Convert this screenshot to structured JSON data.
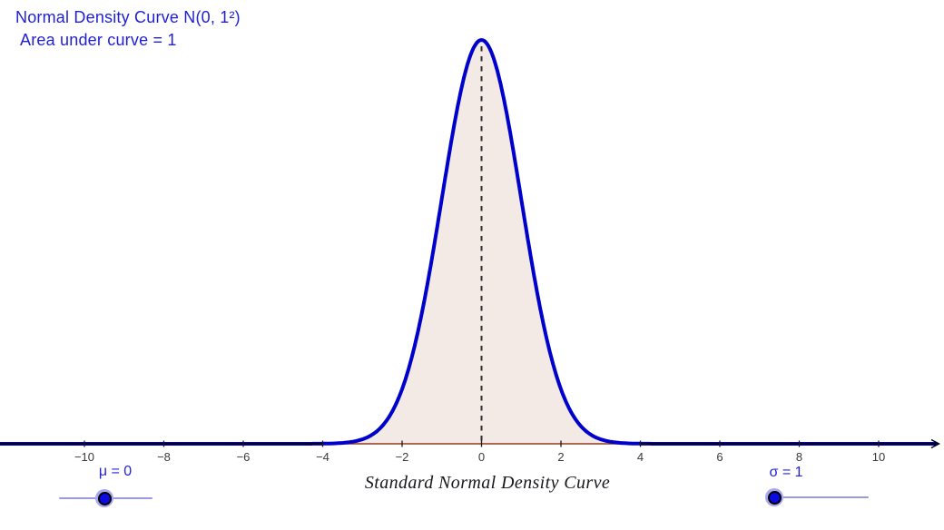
{
  "app": {
    "background": "#ffffff"
  },
  "chart_data": {
    "type": "area",
    "title": "Normal Density Curve N(0, 1²)",
    "subtitle": "Area under curve = 1",
    "caption": "Standard Normal Density Curve",
    "distribution": {
      "name": "normal",
      "mu": 0,
      "sigma": 1,
      "peak_density": 0.3989
    },
    "x_ticks": [
      -10,
      -8,
      -6,
      -4,
      -2,
      0,
      2,
      4,
      6,
      8,
      10
    ],
    "x_axis_range_units": [
      -12.2,
      11.45
    ],
    "shaded_region": {
      "from": -4,
      "to": 4,
      "area": 1
    },
    "dashed_line_x": 0,
    "grid": false,
    "colors": {
      "curve": "#0000cc",
      "fill": "#f3eae5",
      "region_baseline": "#93391f",
      "axis": "#000000",
      "tick_label": "#3a3a3a",
      "dashed_line": "#2e2e2e",
      "title_text": "#1f1fd9",
      "caption_text": "#17171c",
      "slider_accent": "#2222dd",
      "slider_track": "#9a9ae2",
      "slider_knob": "#0c0ce0",
      "slider_halo": "#a8a8ec"
    }
  },
  "sliders": {
    "mu": {
      "label": "μ = 0",
      "name": "μ",
      "value": 0
    },
    "sigma": {
      "label": "σ = 1",
      "name": "σ",
      "value": 1
    }
  }
}
